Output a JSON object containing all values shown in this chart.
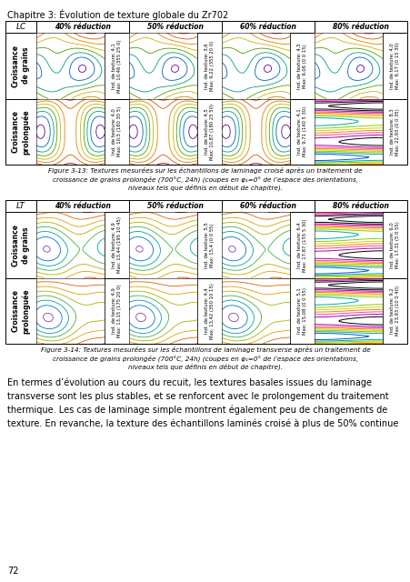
{
  "page_title": "Chapitre 3: Évolution de texture globale du Zr702",
  "page_number": "72",
  "background_color": "#ffffff",
  "table1": {
    "title_col": "LC",
    "col_headers": [
      "40% réduction",
      "50% réduction",
      "60% réduction",
      "80% réduction"
    ],
    "row_headers": [
      "Croissance\nde grains",
      "Croissance\nprolonguée"
    ],
    "annotations": [
      [
        "Ind. de texture: 4,1\nMax: 10,46 (355 25 0)",
        "Ind. de texture: 3,6\nMax: 9,22 (355 20 0)",
        "Ind. de texture: 4,5\nMax: 9,06 (0 0 15)",
        "Ind. de texture: 4,0\nMax: 9,17 (0 15 30)"
      ],
      [
        "Ind. de texture: 4,0\nMax: 10,5 (180 30 5)",
        "Ind. de texture: 4,5\nMax: 10,87 (180 25 50)",
        "Ind. de texture: 4,1\nMax: 9,71 (140 5 30)",
        "Ind. de texture: 8,3\nMax: 22,93 (0 0 35)"
      ]
    ],
    "black_stripes": [
      [
        false,
        false,
        false,
        false
      ],
      [
        false,
        false,
        false,
        true
      ]
    ]
  },
  "figure_caption_1": "Figure 3-13: Textures mesurées sur les échantillons de laminage croisé après un traitement de\ncroissance de grains prolongée (700°C, 24h) (coupes en φ₁=0° de l’espace des orientations,\nniveaux tels que définis en début de chapitre).",
  "table2": {
    "title_col": "LT",
    "col_headers": [
      "40% réduction",
      "50% réduction",
      "60% réduction",
      "80% réduction"
    ],
    "row_headers": [
      "Croissance\nde grains",
      "Croissance\nprolonguée"
    ],
    "annotations": [
      [
        "Ind. de texture: 4,9\nMax: 13,44 (195 10 45)",
        "Ind. de texture: 5,5\nMax: 15,4 (0 0 55)",
        "Ind. de texture: 6,4\nMax: 17,87 (155 5 30)",
        "Ind. de texture: 6,0\nMax: 17,31 (5 0 55)"
      ],
      [
        "Ind. de texture: 4,9\nMax: 13,15 (175 20 0)",
        "Ind. de texture: 4,4\nMax: 13,42 (350 10 15)",
        "Ind. de texture: 5,1\nMax: 15,08 (0 0 55)",
        "Ind. de texture: 9,2\nMax: 23,93 (10 0 40)"
      ]
    ],
    "black_stripes": [
      [
        false,
        false,
        false,
        true
      ],
      [
        false,
        false,
        false,
        true
      ]
    ]
  },
  "figure_caption_2": "Figure 3-14: Textures mesurées sur les échantillons de laminage transverse après un traitement de\ncroissance de grains prolongée (700°C, 24h) (coupes en φ₁=0° de l’espace des orientations,\nniveaux tels que définis en début de chapitre).",
  "body_text": "En termes d’évolution au cours du recuit, les textures basales issues du laminage\ntransverse sont les plus stables, et se renforcent avec le prolongement du traitement\nthermique. Les cas de laminage simple montrent également peu de changements de\ntexture. En revanche, la texture des échantillons laminés croisé à plus de 50% continue",
  "contour_colors": [
    "#cc0000",
    "#e05000",
    "#e08000",
    "#c8b400",
    "#50a000",
    "#00a080",
    "#0060c0",
    "#6000a0"
  ],
  "contour_colors_lt": [
    "#cc0000",
    "#e06000",
    "#e0a000",
    "#b0b000",
    "#40b040",
    "#00a0a0",
    "#0070d0",
    "#8040b0"
  ],
  "stripe_colors": [
    "#000000",
    "#000000",
    "#aa00aa",
    "#ee44aa",
    "#ee8800",
    "#ddcc00",
    "#88cc00",
    "#00aaaa",
    "#0055cc",
    "#7700aa"
  ]
}
